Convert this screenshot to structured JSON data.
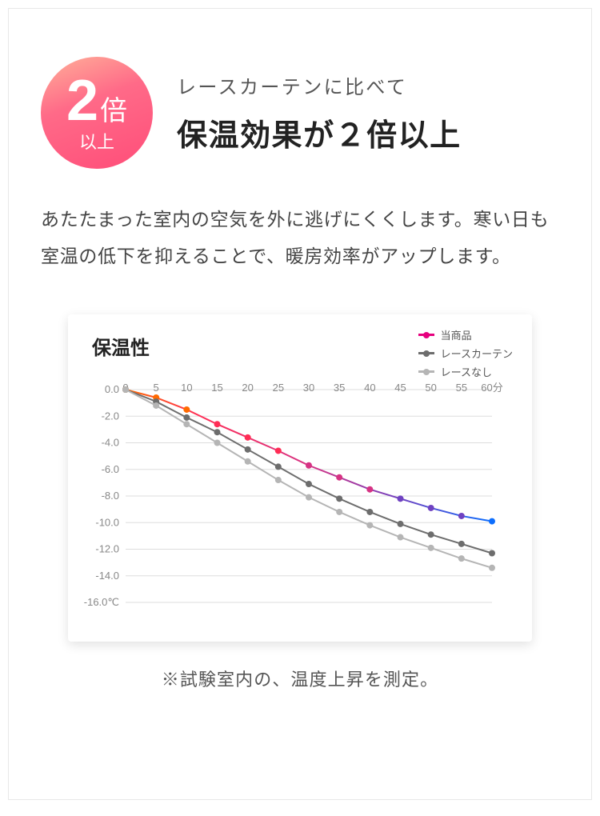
{
  "badge": {
    "number": "2",
    "bai": "倍",
    "sub": "以上"
  },
  "kicker": "レースカーテンに比べて",
  "headline": "保温効果が２倍以上",
  "body": "あたたまった室内の空気を外に逃げにくくします。寒い日も室温の低下を抑えることで、暖房効率がアップします。",
  "footnote": "※試験室内の、温度上昇を測定。",
  "chart": {
    "title": "保温性",
    "title_fontsize": 24,
    "background_color": "#ffffff",
    "grid_color": "#dddddd",
    "label_fontsize": 13,
    "label_color": "#888888",
    "xlim": [
      0,
      60
    ],
    "ylim": [
      -16,
      0
    ],
    "xtick_step": 5,
    "ytick_step": 2,
    "xticks": [
      "0",
      "5",
      "10",
      "15",
      "20",
      "25",
      "30",
      "35",
      "40",
      "45",
      "50",
      "55",
      "60分"
    ],
    "yticks": [
      "0.0",
      "-2.0",
      "-4.0",
      "-6.0",
      "-8.0",
      "-10.0",
      "-12.0",
      "-14.0",
      "-16.0℃"
    ],
    "marker_radius": 4,
    "line_width": 2,
    "legend": [
      {
        "label": "当商品",
        "color": "#e6007e"
      },
      {
        "label": "レースカーテン",
        "color": "#6d6d6d"
      },
      {
        "label": "レースなし",
        "color": "#b5b5b5"
      }
    ],
    "series": [
      {
        "name": "product",
        "label": "当商品",
        "gradient": true,
        "gradient_stops": [
          {
            "offset": 0.0,
            "color": "#ff6a00"
          },
          {
            "offset": 0.2,
            "color": "#ff2d55"
          },
          {
            "offset": 0.5,
            "color": "#d63384"
          },
          {
            "offset": 0.75,
            "color": "#6f42c1"
          },
          {
            "offset": 1.0,
            "color": "#0d6efd"
          }
        ],
        "x": [
          0,
          5,
          10,
          15,
          20,
          25,
          30,
          35,
          40,
          45,
          50,
          55,
          60
        ],
        "y": [
          0.0,
          -0.6,
          -1.5,
          -2.6,
          -3.6,
          -4.6,
          -5.7,
          -6.6,
          -7.5,
          -8.2,
          -8.9,
          -9.5,
          -9.9
        ]
      },
      {
        "name": "lace",
        "label": "レースカーテン",
        "color": "#6d6d6d",
        "x": [
          0,
          5,
          10,
          15,
          20,
          25,
          30,
          35,
          40,
          45,
          50,
          55,
          60
        ],
        "y": [
          0.0,
          -0.9,
          -2.1,
          -3.2,
          -4.5,
          -5.8,
          -7.1,
          -8.2,
          -9.2,
          -10.1,
          -10.9,
          -11.6,
          -12.3
        ]
      },
      {
        "name": "none",
        "label": "レースなし",
        "color": "#b5b5b5",
        "x": [
          0,
          5,
          10,
          15,
          20,
          25,
          30,
          35,
          40,
          45,
          50,
          55,
          60
        ],
        "y": [
          0.0,
          -1.2,
          -2.6,
          -4.0,
          -5.4,
          -6.8,
          -8.1,
          -9.2,
          -10.2,
          -11.1,
          -11.9,
          -12.7,
          -13.4
        ]
      }
    ]
  }
}
